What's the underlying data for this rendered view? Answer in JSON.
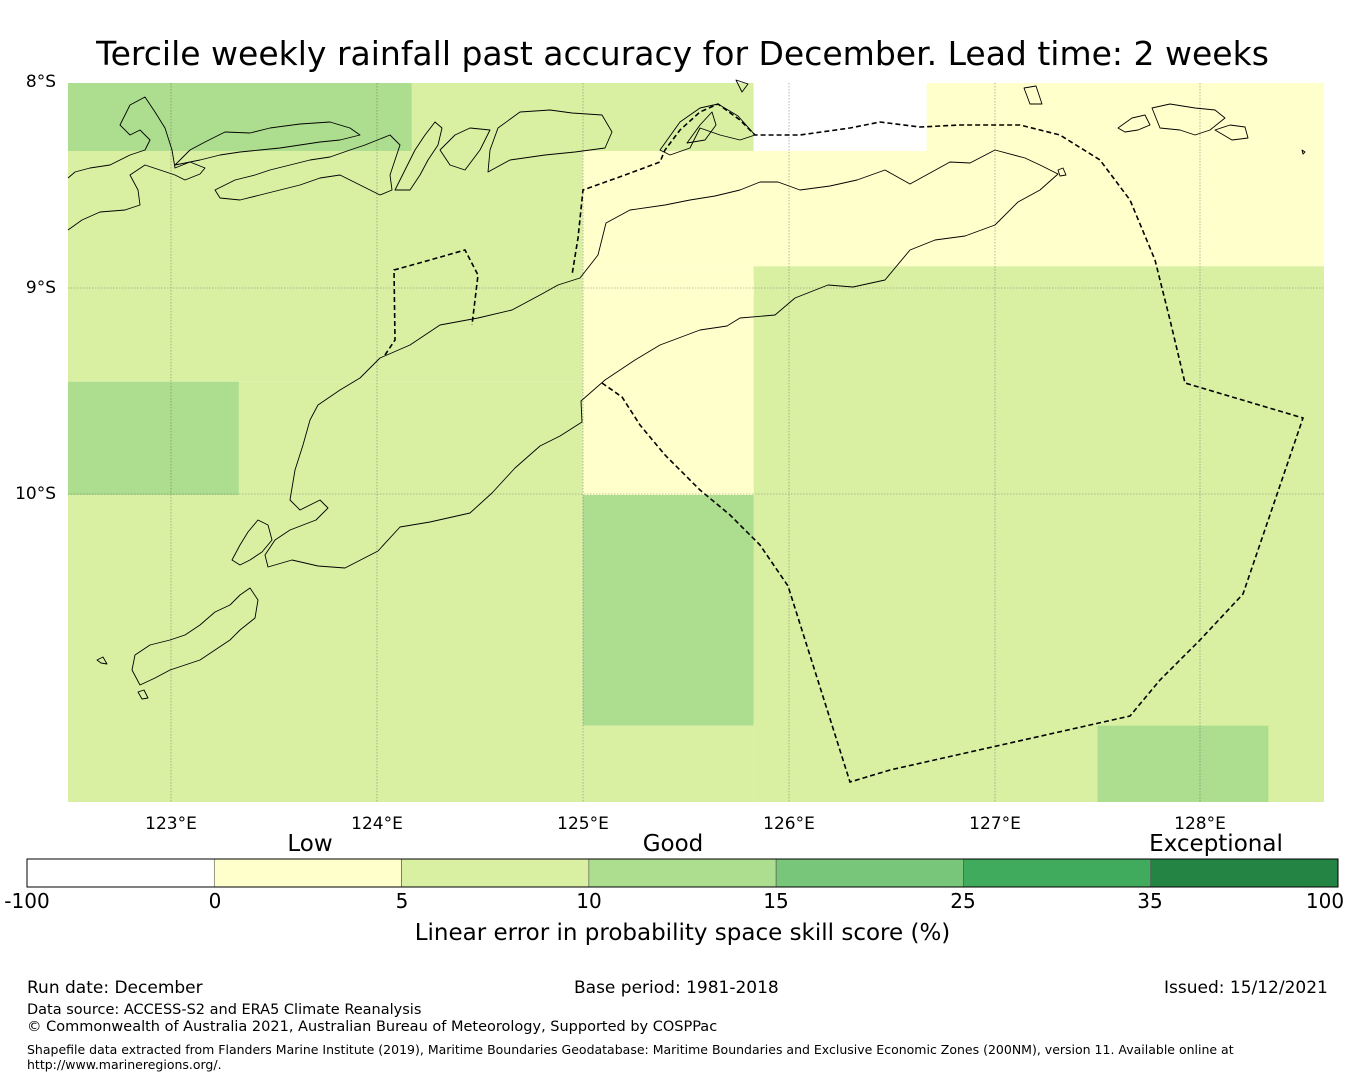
{
  "title": "Tercile weekly rainfall past accuracy for December. Lead time: 2 weeks",
  "map": {
    "lat_labels": [
      "8°S",
      "9°S",
      "10°S"
    ],
    "lon_labels": [
      "123°E",
      "124°E",
      "125°E",
      "126°E",
      "127°E",
      "128°E"
    ],
    "extent": {
      "lon_min": 122.5,
      "lon_max": 128.6,
      "lat_top": -8.0,
      "lat_bottom": -11.5
    },
    "grid_cells": [
      {
        "lon0": 122.5,
        "lon1": 124.17,
        "lat0": -8.0,
        "lat1": -8.33,
        "bin": "10-15"
      },
      {
        "lon0": 124.17,
        "lon1": 125.83,
        "lat0": -8.0,
        "lat1": -8.33,
        "bin": "5-10"
      },
      {
        "lon0": 125.83,
        "lon1": 126.67,
        "lat0": -8.0,
        "lat1": -8.33,
        "bin": "no-data"
      },
      {
        "lon0": 126.67,
        "lon1": 128.6,
        "lat0": -8.0,
        "lat1": -8.33,
        "bin": "0-5"
      },
      {
        "lon0": 122.5,
        "lon1": 125.0,
        "lat0": -8.33,
        "lat1": -9.45,
        "bin": "5-10"
      },
      {
        "lon0": 125.0,
        "lon1": 128.6,
        "lat0": -8.33,
        "lat1": -8.89,
        "bin": "0-5"
      },
      {
        "lon0": 125.0,
        "lon1": 125.83,
        "lat0": -8.89,
        "lat1": -10.0,
        "bin": "0-5"
      },
      {
        "lon0": 125.83,
        "lon1": 128.6,
        "lat0": -8.89,
        "lat1": -11.5,
        "bin": "5-10"
      },
      {
        "lon0": 122.5,
        "lon1": 123.33,
        "lat0": -9.45,
        "lat1": -10.0,
        "bin": "10-15"
      },
      {
        "lon0": 123.33,
        "lon1": 125.0,
        "lat0": -9.45,
        "lat1": -10.0,
        "bin": "5-10"
      },
      {
        "lon0": 122.5,
        "lon1": 125.0,
        "lat0": -10.0,
        "lat1": -11.5,
        "bin": "5-10"
      },
      {
        "lon0": 125.0,
        "lon1": 125.83,
        "lat0": -10.0,
        "lat1": -11.12,
        "bin": "10-15"
      },
      {
        "lon0": 125.0,
        "lon1": 125.83,
        "lat0": -11.12,
        "lat1": -11.5,
        "bin": "5-10"
      },
      {
        "lon0": 127.5,
        "lon1": 128.33,
        "lat0": -11.12,
        "lat1": -11.5,
        "bin": "10-15"
      }
    ]
  },
  "colorbar": {
    "categories": [
      "Low",
      "Good",
      "Exceptional"
    ],
    "ticks": [
      "-100",
      "0",
      "5",
      "10",
      "15",
      "25",
      "35",
      "100"
    ],
    "bins": [
      {
        "from": -100,
        "to": 0,
        "color": "#ffffff"
      },
      {
        "from": 0,
        "to": 5,
        "color": "#ffffcc"
      },
      {
        "from": 5,
        "to": 10,
        "color": "#d9f0a3"
      },
      {
        "from": 10,
        "to": 15,
        "color": "#addd8e"
      },
      {
        "from": 15,
        "to": 25,
        "color": "#78c679"
      },
      {
        "from": 25,
        "to": 35,
        "color": "#41ab5d"
      },
      {
        "from": 35,
        "to": 100,
        "color": "#238443"
      }
    ],
    "label": "Linear error in probability space skill score (%)"
  },
  "footer": {
    "run_date": "Run date: December",
    "base_period": "Base period: 1981-2018",
    "issued": "Issued: 15/12/2021",
    "data_source": "Data source: ACCESS-S2 and ERA5 Climate Reanalysis",
    "copyright": "© Commonwealth of Australia 2021, Australian Bureau of Meteorology, Supported by COSPPac",
    "shapefile_line1": "Shapefile data extracted from Flanders Marine Institute (2019), Maritime Boundaries Geodatabase: Maritime Boundaries and Exclusive Economic Zones (200NM), version 11. Available online at",
    "shapefile_line2": "http://www.marineregions.org/."
  }
}
